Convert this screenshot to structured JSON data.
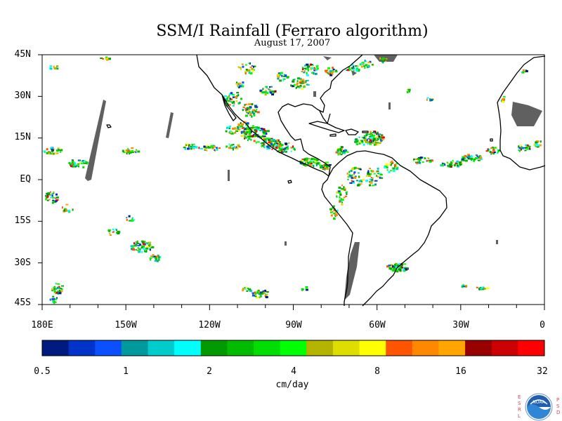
{
  "title": "SSM/I Rainfall (Ferraro algorithm)",
  "subtitle": "August 17, 2007",
  "lat_labels": [
    "45N",
    "30N",
    "15N",
    "EQ",
    "15S",
    "30S",
    "45S"
  ],
  "lon_labels": [
    "180E",
    "150W",
    "120W",
    "90W",
    "60W",
    "30W",
    "0"
  ],
  "map_extent": {
    "lon_min": -180,
    "lon_max": 0,
    "lat_min": -45,
    "lat_max": 45
  },
  "colorbar": {
    "units": "cm/day",
    "labels": [
      "0.5",
      "1",
      "2",
      "4",
      "8",
      "16",
      "32"
    ],
    "colors": [
      "#001a80",
      "#0033c8",
      "#0a50ff",
      "#00999c",
      "#00cccc",
      "#00ffff",
      "#009900",
      "#00bb00",
      "#00dd00",
      "#00ff00",
      "#b3b300",
      "#dddd00",
      "#ffff00",
      "#ff5500",
      "#ff8800",
      "#ffa500",
      "#990000",
      "#cc0000",
      "#ff0000"
    ]
  },
  "no_data_color": "#606060",
  "logo": {
    "left_letters": [
      "E",
      "S",
      "R",
      "L"
    ],
    "right_letters": [
      "P",
      "S",
      "D"
    ],
    "center": "NOAA"
  }
}
